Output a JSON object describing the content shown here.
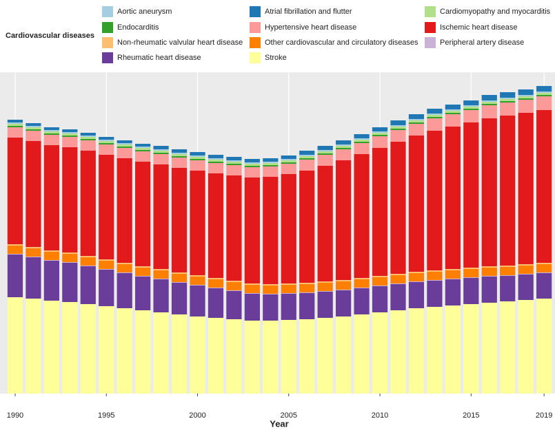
{
  "chart_data": {
    "type": "stacked-bar",
    "legend_title": "Cardiovascular diseases",
    "x_label": "Year",
    "x": [
      1990,
      1991,
      1992,
      1993,
      1994,
      1995,
      1996,
      1997,
      1998,
      1999,
      2000,
      2001,
      2002,
      2003,
      2004,
      2005,
      2006,
      2007,
      2008,
      2009,
      2010,
      2011,
      2012,
      2013,
      2014,
      2015,
      2016,
      2017,
      2018,
      2019
    ],
    "xlim": [
      1989.17,
      2019.6
    ],
    "xticks": [
      1990,
      1995,
      2000,
      2005,
      2010,
      2015,
      2019
    ],
    "ylim": [
      0,
      467
    ],
    "grid": true,
    "legend_position": "top",
    "series": [
      {
        "name": "Stroke",
        "color": "#ffff99",
        "values": [
          140,
          138,
          135,
          133,
          130,
          127,
          124,
          121,
          118,
          115,
          112,
          110,
          108,
          106,
          106,
          107,
          108,
          110,
          112,
          115,
          118,
          121,
          124,
          126,
          128,
          130,
          132,
          134,
          136,
          138
        ]
      },
      {
        "name": "Rheumatic heart disease",
        "color": "#6a3d9a",
        "values": [
          62,
          60,
          58,
          57,
          55,
          53,
          51,
          49,
          48,
          46,
          45,
          43,
          41,
          39,
          38,
          38,
          38,
          38,
          38,
          38,
          38,
          38,
          38,
          38,
          38,
          38,
          38,
          37,
          37,
          37
        ]
      },
      {
        "name": "Peripheral artery disease",
        "color": "#cab2d6",
        "values": [
          1,
          1,
          1,
          1,
          1,
          1,
          1,
          1,
          1,
          1,
          1,
          1,
          1,
          1,
          1,
          1,
          1,
          1,
          1,
          1,
          1,
          1,
          1,
          1,
          1,
          1,
          1,
          1,
          1,
          1
        ]
      },
      {
        "name": "Other cardiovascular and circulatory diseases",
        "color": "#ff7f00",
        "values": [
          12,
          12,
          12,
          12,
          12,
          12,
          12,
          12,
          12,
          12,
          12,
          12,
          12,
          12,
          12,
          12,
          12,
          12,
          12,
          12,
          12,
          12,
          12,
          12,
          12,
          12,
          12,
          12,
          12,
          12
        ]
      },
      {
        "name": "Non-rheumatic valvular heart disease",
        "color": "#fdbf6f",
        "values": [
          2,
          2,
          2,
          2,
          2,
          2,
          2,
          2,
          2,
          2,
          2,
          2,
          2,
          2,
          2,
          2,
          2,
          2,
          2,
          2,
          2,
          2,
          2,
          2,
          2,
          2,
          2,
          2,
          2,
          2
        ]
      },
      {
        "name": "Ischemic heart disease",
        "color": "#e31a1c",
        "values": [
          155,
          154,
          153,
          153,
          153,
          152,
          152,
          152,
          152,
          152,
          152,
          152,
          153,
          154,
          156,
          159,
          163,
          168,
          174,
          180,
          186,
          192,
          198,
          203,
          207,
          211,
          215,
          218,
          220,
          222
        ]
      },
      {
        "name": "Hypertensive heart disease",
        "color": "#fb9a99",
        "values": [
          15,
          15,
          15,
          15,
          15,
          15,
          15,
          15,
          15,
          15,
          15,
          15,
          15,
          15,
          15,
          15,
          16,
          16,
          16,
          16,
          17,
          17,
          17,
          18,
          18,
          18,
          19,
          19,
          19,
          20
        ]
      },
      {
        "name": "Endocarditis",
        "color": "#33a02c",
        "values": [
          2,
          2,
          2,
          2,
          2,
          2,
          2,
          2,
          2,
          2,
          2,
          2,
          2,
          2,
          2,
          2,
          2,
          2,
          2,
          2,
          2,
          2,
          2,
          2,
          2,
          2,
          2,
          2,
          2,
          2
        ]
      },
      {
        "name": "Cardiomyopathy and myocarditis",
        "color": "#b2df8a",
        "values": [
          3,
          3,
          3,
          3,
          3,
          3,
          3,
          3,
          3,
          3,
          3,
          3,
          3,
          3,
          3,
          3,
          3,
          3,
          3,
          3,
          3,
          3,
          3,
          3,
          3,
          3,
          3,
          3,
          3,
          3
        ]
      },
      {
        "name": "Aortic aneurysm",
        "color": "#a6cee3",
        "values": [
          2,
          2,
          2,
          2,
          2,
          2,
          2,
          2,
          2,
          2,
          2,
          2,
          2,
          2,
          2,
          2,
          2,
          2,
          2,
          2,
          2,
          2,
          2,
          2,
          2,
          2,
          2,
          2,
          2,
          2
        ]
      },
      {
        "name": "Atrial fibrillation and flutter",
        "color": "#1f78b4",
        "values": [
          4,
          4,
          4,
          4,
          4,
          4,
          4,
          4,
          5,
          5,
          5,
          5,
          5,
          5,
          5,
          5,
          6,
          6,
          6,
          6,
          6,
          7,
          7,
          7,
          7,
          7,
          8,
          8,
          8,
          8
        ]
      }
    ]
  }
}
